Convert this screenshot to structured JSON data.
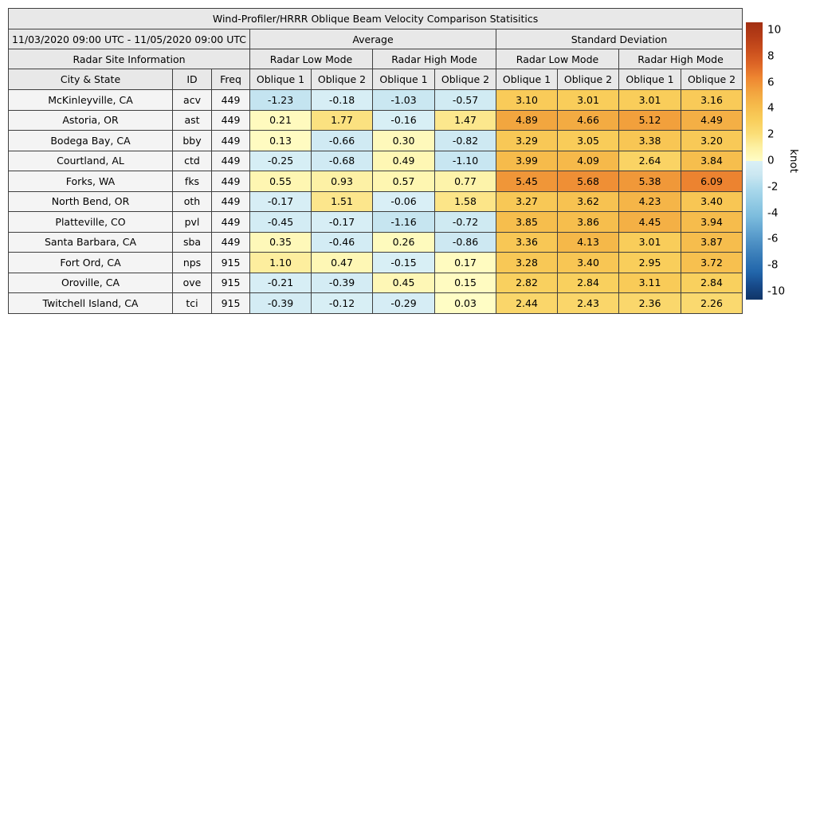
{
  "chart_data": {
    "type": "table",
    "title": "Wind-Profiler/HRRR Oblique Beam Velocity Comparison Statisitics",
    "period": "11/03/2020 09:00 UTC - 11/05/2020 09:00 UTC",
    "section_headers": {
      "site_info": "Radar Site Information",
      "average": "Average",
      "std": "Standard Deviation"
    },
    "mode_headers": [
      "Radar Low Mode",
      "Radar High Mode",
      "Radar Low Mode",
      "Radar High Mode"
    ],
    "info_col_headers": [
      "City & State",
      "ID",
      "Freq"
    ],
    "oblique_pair": [
      "Oblique 1",
      "Oblique 2"
    ],
    "rows": [
      {
        "city": "McKinleyville, CA",
        "id": "acv",
        "freq": "449",
        "values": [
          "-1.23",
          "-0.18",
          "-1.03",
          "-0.57",
          "3.10",
          "3.01",
          "3.01",
          "3.16"
        ]
      },
      {
        "city": "Astoria, OR",
        "id": "ast",
        "freq": "449",
        "values": [
          "0.21",
          "1.77",
          "-0.16",
          "1.47",
          "4.89",
          "4.66",
          "5.12",
          "4.49"
        ]
      },
      {
        "city": "Bodega Bay, CA",
        "id": "bby",
        "freq": "449",
        "values": [
          "0.13",
          "-0.66",
          "0.30",
          "-0.82",
          "3.29",
          "3.05",
          "3.38",
          "3.20"
        ]
      },
      {
        "city": "Courtland, AL",
        "id": "ctd",
        "freq": "449",
        "values": [
          "-0.25",
          "-0.68",
          "0.49",
          "-1.10",
          "3.99",
          "4.09",
          "2.64",
          "3.84"
        ]
      },
      {
        "city": "Forks, WA",
        "id": "fks",
        "freq": "449",
        "values": [
          "0.55",
          "0.93",
          "0.57",
          "0.77",
          "5.45",
          "5.68",
          "5.38",
          "6.09"
        ]
      },
      {
        "city": "North Bend, OR",
        "id": "oth",
        "freq": "449",
        "values": [
          "-0.17",
          "1.51",
          "-0.06",
          "1.58",
          "3.27",
          "3.62",
          "4.23",
          "3.40"
        ]
      },
      {
        "city": "Platteville, CO",
        "id": "pvl",
        "freq": "449",
        "values": [
          "-0.45",
          "-0.17",
          "-1.16",
          "-0.72",
          "3.85",
          "3.86",
          "4.45",
          "3.94"
        ]
      },
      {
        "city": "Santa Barbara, CA",
        "id": "sba",
        "freq": "449",
        "values": [
          "0.35",
          "-0.46",
          "0.26",
          "-0.86",
          "3.36",
          "4.13",
          "3.01",
          "3.87"
        ]
      },
      {
        "city": "Fort Ord, CA",
        "id": "nps",
        "freq": "915",
        "values": [
          "1.10",
          "0.47",
          "-0.15",
          "0.17",
          "3.28",
          "3.40",
          "2.95",
          "3.72"
        ]
      },
      {
        "city": "Oroville, CA",
        "id": "ove",
        "freq": "915",
        "values": [
          "-0.21",
          "-0.39",
          "0.45",
          "0.15",
          "2.82",
          "2.84",
          "3.11",
          "2.84"
        ]
      },
      {
        "city": "Twitchell Island, CA",
        "id": "tci",
        "freq": "915",
        "values": [
          "-0.39",
          "-0.12",
          "-0.29",
          "0.03",
          "2.44",
          "2.43",
          "2.36",
          "2.26"
        ]
      }
    ],
    "colorbar": {
      "label": "knot",
      "vmin": -10,
      "vmax": 10,
      "ticks": [
        "10",
        "8",
        "6",
        "4",
        "2",
        "0",
        "-2",
        "-4",
        "-6",
        "-8",
        "-10"
      ],
      "colormap_positive": [
        [
          0,
          "#fffdc6"
        ],
        [
          1,
          "#fdf0a2"
        ],
        [
          2,
          "#fbdd76"
        ],
        [
          3,
          "#f9cd5a"
        ],
        [
          4,
          "#f6bb4b"
        ],
        [
          5,
          "#f2a33e"
        ],
        [
          6,
          "#ee8631"
        ],
        [
          7,
          "#dd6526"
        ],
        [
          8,
          "#c94e1d"
        ],
        [
          9,
          "#b53c17"
        ],
        [
          10,
          "#a22f12"
        ]
      ],
      "colormap_negative": [
        [
          -10,
          "#103567"
        ],
        [
          -9,
          "#174a8a"
        ],
        [
          -8,
          "#2266ab"
        ],
        [
          -7,
          "#3579b6"
        ],
        [
          -6,
          "#4b8ec3"
        ],
        [
          -5,
          "#63a5d1"
        ],
        [
          -4,
          "#7cbcdd"
        ],
        [
          -3,
          "#93cbe4"
        ],
        [
          -2,
          "#abd9ec"
        ],
        [
          -1,
          "#cbe7f1"
        ],
        [
          0,
          "#daf0f6"
        ]
      ]
    }
  }
}
